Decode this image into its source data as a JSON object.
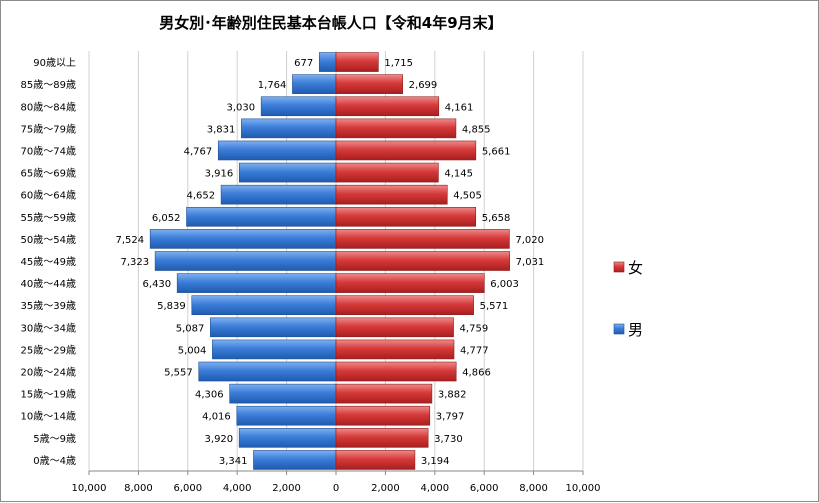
{
  "chart_data": {
    "type": "bar",
    "orientation": "horizontal-population-pyramid",
    "title": "男女別･年齢別住民基本台帳人口【令和4年9月末】",
    "categories": [
      "0歳～4歳",
      "5歳～9歳",
      "10歳～14歳",
      "15歳～19歳",
      "20歳～24歳",
      "25歳～29歳",
      "30歳～34歳",
      "35歳～39歳",
      "40歳～44歳",
      "45歳～49歳",
      "50歳～54歳",
      "55歳～59歳",
      "60歳～64歳",
      "65歳～69歳",
      "70歳～74歳",
      "75歳～79歳",
      "80歳～84歳",
      "85歳～89歳",
      "90歳以上"
    ],
    "series": [
      {
        "name": "男",
        "side": "left",
        "color": "#3b7dd8",
        "values": [
          3341,
          3920,
          4016,
          4306,
          5557,
          5004,
          5087,
          5839,
          6430,
          7323,
          7524,
          6052,
          4652,
          3916,
          4767,
          3831,
          3030,
          1764,
          677
        ],
        "labels": [
          "3,341",
          "3,920",
          "4,016",
          "4,306",
          "5,557",
          "5,004",
          "5,087",
          "5,839",
          "6,430",
          "7,323",
          "7,524",
          "6,052",
          "4,652",
          "3,916",
          "4,767",
          "3,831",
          "3,030",
          "1,764",
          "677"
        ]
      },
      {
        "name": "女",
        "side": "right",
        "color": "#d63a3a",
        "values": [
          3194,
          3730,
          3797,
          3882,
          4866,
          4777,
          4759,
          5571,
          6003,
          7031,
          7020,
          5658,
          4505,
          4145,
          5661,
          4855,
          4161,
          2699,
          1715
        ],
        "labels": [
          "3,194",
          "3,730",
          "3,797",
          "3,882",
          "4,866",
          "4,777",
          "4,759",
          "5,571",
          "6,003",
          "7,031",
          "7,020",
          "5,658",
          "4,505",
          "4,145",
          "5,661",
          "4,855",
          "4,161",
          "2,699",
          "1,715"
        ]
      }
    ],
    "xlim": [
      -10000,
      10000
    ],
    "xticks": [
      -10000,
      -8000,
      -6000,
      -4000,
      -2000,
      0,
      2000,
      4000,
      6000,
      8000,
      10000
    ],
    "xtick_labels": [
      "10,000",
      "8,000",
      "6,000",
      "4,000",
      "2,000",
      "0",
      "2,000",
      "4,000",
      "6,000",
      "8,000",
      "10,000"
    ],
    "grid": true,
    "legend_position": "right",
    "legend": [
      {
        "name": "女",
        "color": "#d63a3a"
      },
      {
        "name": "男",
        "color": "#3b7dd8"
      }
    ]
  }
}
